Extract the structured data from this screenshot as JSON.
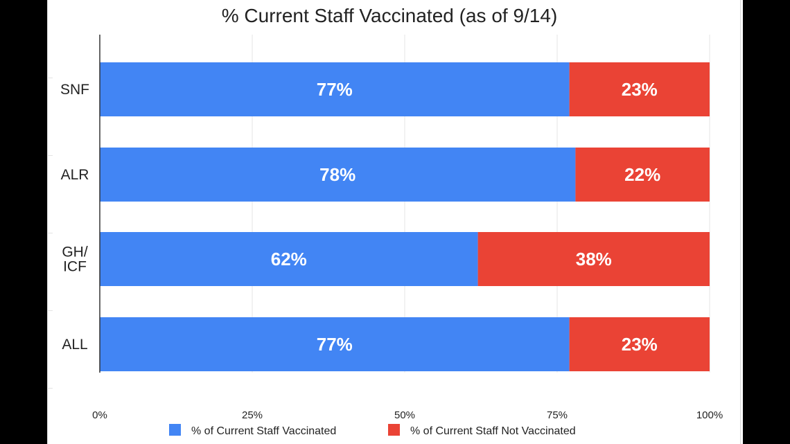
{
  "colors": {
    "vaccinated": "#4285f4",
    "not_vaccinated": "#ea4335",
    "gridline": "#e6e6e6",
    "axis": "#333333"
  },
  "chart_data": {
    "type": "bar",
    "orientation": "horizontal",
    "stacked": true,
    "title": "% Current Staff Vaccinated (as of 9/14)",
    "xlabel": "",
    "ylabel": "",
    "categories": [
      [
        "SNF"
      ],
      [
        "ALR"
      ],
      [
        "GH/",
        "ICF"
      ],
      [
        "ALL"
      ]
    ],
    "series": [
      {
        "name": "% of Current Staff Vaccinated",
        "values": [
          77,
          78,
          62,
          77
        ],
        "labels": [
          "77%",
          "78%",
          "62%",
          "77%"
        ],
        "color": "#4285f4"
      },
      {
        "name": "% of Current Staff Not Vaccinated",
        "values": [
          23,
          22,
          38,
          23
        ],
        "labels": [
          "23%",
          "22%",
          "38%",
          "23%"
        ],
        "color": "#ea4335"
      }
    ],
    "xlim": [
      0,
      100
    ],
    "xticks": [
      0,
      25,
      50,
      75,
      100
    ],
    "xtick_labels": [
      "0%",
      "25%",
      "50%",
      "75%",
      "100%"
    ],
    "grid": true,
    "legend_position": "bottom"
  }
}
